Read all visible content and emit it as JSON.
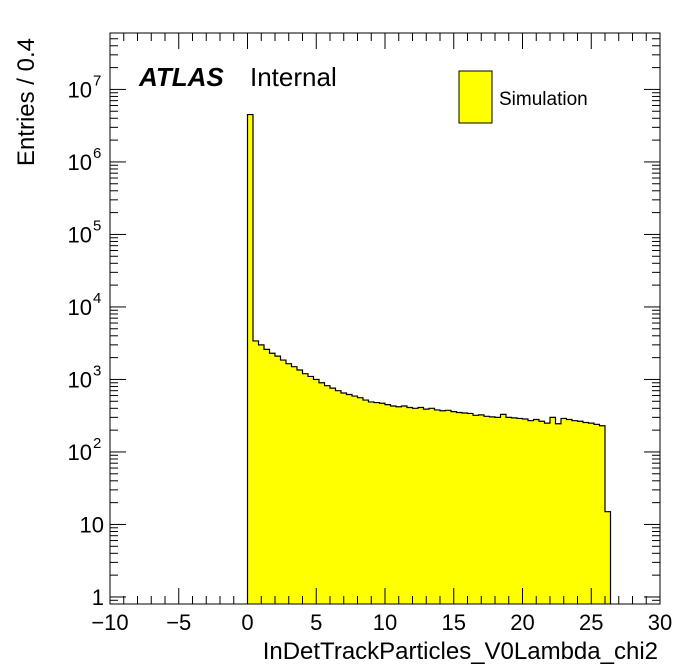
{
  "chart_data": {
    "type": "bar",
    "subtype": "histogram",
    "xlabel": "InDetTrackParticles_V0Lambda_chi2",
    "ylabel": "Entries / 0.4",
    "xlim": [
      -10,
      30
    ],
    "ylim": [
      0.8,
      60000000
    ],
    "yscale": "log",
    "grid": false,
    "legend_position": "top-right",
    "fill_color": "#ffff00",
    "line_color": "#000000",
    "x_ticks": [
      "−10",
      "−5",
      "0",
      "5",
      "10",
      "15",
      "20",
      "25",
      "30"
    ],
    "x_tick_values": [
      -10,
      -5,
      0,
      5,
      10,
      15,
      20,
      25,
      30
    ],
    "y_ticks": [
      {
        "value": 1,
        "base": "1",
        "exp": ""
      },
      {
        "value": 10,
        "base": "10",
        "exp": ""
      },
      {
        "value": 100,
        "base": "10",
        "exp": "2"
      },
      {
        "value": 1000,
        "base": "10",
        "exp": "3"
      },
      {
        "value": 10000,
        "base": "10",
        "exp": "4"
      },
      {
        "value": 100000,
        "base": "10",
        "exp": "5"
      },
      {
        "value": 1000000,
        "base": "10",
        "exp": "6"
      },
      {
        "value": 10000000,
        "base": "10",
        "exp": "7"
      }
    ],
    "bin_width": 0.4,
    "bin_start": 0.0,
    "values": [
      4500000,
      3400,
      3000,
      2600,
      2300,
      2100,
      1850,
      1650,
      1500,
      1350,
      1200,
      1100,
      1000,
      900,
      820,
      760,
      700,
      650,
      620,
      590,
      560,
      520,
      490,
      480,
      470,
      450,
      430,
      420,
      430,
      410,
      400,
      410,
      390,
      400,
      380,
      370,
      375,
      360,
      350,
      345,
      340,
      320,
      325,
      310,
      305,
      300,
      330,
      300,
      295,
      290,
      285,
      270,
      280,
      265,
      250,
      300,
      245,
      290,
      280,
      270,
      265,
      255,
      250,
      240,
      230,
      15
    ],
    "series": [
      {
        "name": "Simulation"
      }
    ],
    "annotations": {
      "atlas": "ATLAS",
      "label": "Internal"
    }
  }
}
